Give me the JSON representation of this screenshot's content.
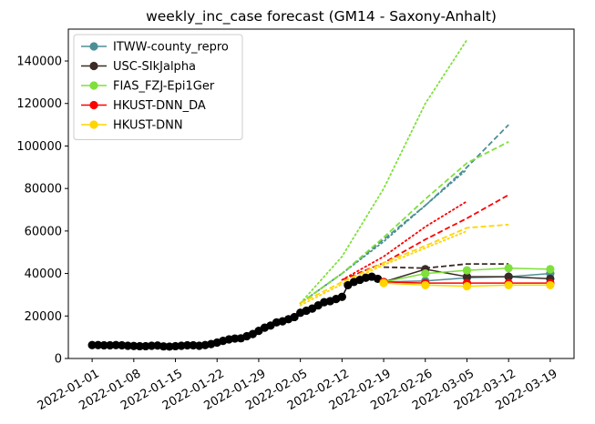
{
  "chart_data": {
    "type": "line",
    "title": "weekly_inc_case forecast (GM14 - Saxony-Anhalt)",
    "xlabel": "",
    "ylabel": "",
    "x_range": [
      "2021-12-28",
      "2022-03-23"
    ],
    "ylim": [
      0,
      155000
    ],
    "x_ticks": [
      "2022-01-01",
      "2022-01-08",
      "2022-01-15",
      "2022-01-22",
      "2022-01-29",
      "2022-02-05",
      "2022-02-12",
      "2022-02-19",
      "2022-02-26",
      "2022-03-05",
      "2022-03-12",
      "2022-03-19"
    ],
    "y_ticks": [
      0,
      20000,
      40000,
      60000,
      80000,
      100000,
      120000,
      140000
    ],
    "y_tick_labels": [
      "0",
      "20000",
      "40000",
      "60000",
      "80000",
      "100000",
      "120000",
      "140000"
    ],
    "grid": false,
    "legend_position": "top-left",
    "observed": {
      "color": "#000000",
      "x": [
        "2022-01-01",
        "2022-01-02",
        "2022-01-03",
        "2022-01-04",
        "2022-01-05",
        "2022-01-06",
        "2022-01-07",
        "2022-01-08",
        "2022-01-09",
        "2022-01-10",
        "2022-01-11",
        "2022-01-12",
        "2022-01-13",
        "2022-01-14",
        "2022-01-15",
        "2022-01-16",
        "2022-01-17",
        "2022-01-18",
        "2022-01-19",
        "2022-01-20",
        "2022-01-21",
        "2022-01-22",
        "2022-01-23",
        "2022-01-24",
        "2022-01-25",
        "2022-01-26",
        "2022-01-27",
        "2022-01-28",
        "2022-01-29",
        "2022-01-30",
        "2022-01-31",
        "2022-02-01",
        "2022-02-02",
        "2022-02-03",
        "2022-02-04",
        "2022-02-05",
        "2022-02-06",
        "2022-02-07",
        "2022-02-08",
        "2022-02-09",
        "2022-02-10",
        "2022-02-11",
        "2022-02-12",
        "2022-02-13",
        "2022-02-14",
        "2022-02-15",
        "2022-02-16",
        "2022-02-17",
        "2022-02-18",
        "2022-02-19"
      ],
      "y": [
        6300,
        6300,
        6200,
        6200,
        6300,
        6200,
        6000,
        5900,
        5800,
        5800,
        6000,
        6100,
        5700,
        5600,
        5800,
        6000,
        6200,
        6200,
        6000,
        6300,
        6800,
        7500,
        8300,
        9000,
        9400,
        9500,
        10500,
        11500,
        13000,
        14500,
        15500,
        17000,
        17500,
        18500,
        19500,
        21500,
        22500,
        23500,
        25000,
        26500,
        27000,
        28000,
        29000,
        34500,
        36000,
        37000,
        38000,
        38500,
        37500,
        36000
      ]
    },
    "series": [
      {
        "name": "ITWW-county_repro",
        "color": "#4d8f96",
        "line_style": "solid",
        "marker": "circle",
        "x": [
          "2022-02-19",
          "2022-02-26",
          "2022-03-05",
          "2022-03-12",
          "2022-03-19"
        ],
        "y": [
          36000,
          36500,
          38000,
          38500,
          40000
        ],
        "forecasts": [
          {
            "style": "dashed",
            "x": [
              "2022-02-05",
              "2022-02-12",
              "2022-02-19",
              "2022-02-26",
              "2022-03-05",
              "2022-03-12"
            ],
            "y": [
              26000,
              40000,
              56000,
              72000,
              90000,
              110000
            ]
          },
          {
            "style": "dotted",
            "x": [
              "2022-02-05",
              "2022-02-12",
              "2022-02-19",
              "2022-02-26",
              "2022-03-05"
            ],
            "y": [
              26000,
              40000,
              55000,
              72000,
              89000
            ]
          }
        ]
      },
      {
        "name": "USC-SIkJalpha",
        "color": "#3b2a25",
        "line_style": "solid",
        "marker": "circle",
        "x": [
          "2022-02-19",
          "2022-02-26",
          "2022-03-05",
          "2022-03-12",
          "2022-03-19"
        ],
        "y": [
          36000,
          42000,
          38500,
          38500,
          37500
        ],
        "forecasts": [
          {
            "style": "dashed",
            "x": [
              "2022-02-19",
              "2022-02-26",
              "2022-03-05",
              "2022-03-12"
            ],
            "y": [
              43000,
              42500,
              44500,
              44500
            ]
          }
        ]
      },
      {
        "name": "FIAS_FZJ-Epi1Ger",
        "color": "#7ee03a",
        "line_style": "solid",
        "marker": "circle",
        "x": [
          "2022-02-19",
          "2022-02-26",
          "2022-03-05",
          "2022-03-12",
          "2022-03-19"
        ],
        "y": [
          36000,
          40000,
          41500,
          42500,
          42000
        ],
        "forecasts": [
          {
            "style": "dashed",
            "x": [
              "2022-02-05",
              "2022-02-12",
              "2022-02-19",
              "2022-02-26",
              "2022-03-05",
              "2022-03-12"
            ],
            "y": [
              26000,
              40000,
              57000,
              75000,
              92000,
              102000
            ]
          },
          {
            "style": "dotted",
            "x": [
              "2022-02-05",
              "2022-02-12",
              "2022-02-19",
              "2022-02-26",
              "2022-03-05"
            ],
            "y": [
              26000,
              48000,
              80000,
              120000,
              150000
            ]
          }
        ]
      },
      {
        "name": "HKUST-DNN_DA",
        "color": "#ff0000",
        "line_style": "solid",
        "marker": "circle",
        "x": [
          "2022-02-19",
          "2022-02-26",
          "2022-03-05",
          "2022-03-12",
          "2022-03-19"
        ],
        "y": [
          36000,
          35500,
          35500,
          35500,
          35500
        ],
        "forecasts": [
          {
            "style": "dashed",
            "x": [
              "2022-02-12",
              "2022-02-19",
              "2022-02-26",
              "2022-03-05",
              "2022-03-12"
            ],
            "y": [
              37000,
              45000,
              56000,
              66000,
              77000
            ]
          },
          {
            "style": "dotted",
            "x": [
              "2022-02-12",
              "2022-02-19",
              "2022-02-26",
              "2022-03-05"
            ],
            "y": [
              37000,
              48000,
              62000,
              74000
            ]
          }
        ]
      },
      {
        "name": "HKUST-DNN",
        "color": "#ffd500",
        "line_style": "solid",
        "marker": "circle",
        "x": [
          "2022-02-19",
          "2022-02-26",
          "2022-03-05",
          "2022-03-12",
          "2022-03-19"
        ],
        "y": [
          35500,
          34500,
          34000,
          34500,
          34500
        ],
        "forecasts": [
          {
            "style": "dashed",
            "x": [
              "2022-02-05",
              "2022-02-12",
              "2022-02-19",
              "2022-02-26",
              "2022-03-05",
              "2022-03-12"
            ],
            "y": [
              26000,
              36000,
              45000,
              53000,
              61500,
              63000
            ]
          },
          {
            "style": "dotted",
            "x": [
              "2022-02-05",
              "2022-02-12",
              "2022-02-19",
              "2022-02-26",
              "2022-03-05"
            ],
            "y": [
              25000,
              35000,
              44000,
              52000,
              60000
            ]
          }
        ]
      }
    ]
  }
}
